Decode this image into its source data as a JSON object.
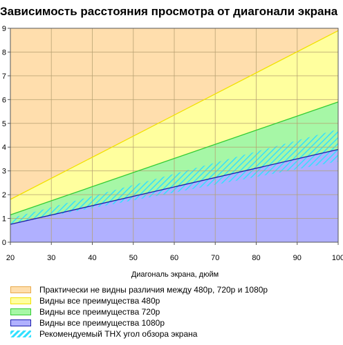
{
  "chart_data": {
    "type": "area",
    "title": "Зависимость расстояния просмотра от диагонали экрана",
    "xlabel": "Диагональ экрана, дюйм",
    "ylabel": "",
    "x": [
      20,
      100
    ],
    "xlim": [
      20,
      100
    ],
    "ylim": [
      0,
      9
    ],
    "x_ticks": [
      "20",
      "30",
      "40",
      "50",
      "60",
      "70",
      "80",
      "90",
      "100"
    ],
    "y_ticks": [
      "0",
      "1",
      "2",
      "3",
      "4",
      "5",
      "6",
      "7",
      "8",
      "9"
    ],
    "grid": true,
    "legend_position": "bottom",
    "series": [
      {
        "name": "Практически не видны различия между 480p, 720p и 1080p",
        "color": "#ffdead",
        "edge": "#e8a94a",
        "y": [
          9,
          9
        ],
        "fill": "solid"
      },
      {
        "name": "Видны все преимущества 480p",
        "color": "#ffff9e",
        "edge": "#f2e000",
        "y": [
          1.8,
          8.9
        ],
        "fill": "solid"
      },
      {
        "name": "Видны все преимущества 720p",
        "color": "#a6f7a6",
        "edge": "#33cc33",
        "y": [
          1.15,
          5.9
        ],
        "fill": "solid"
      },
      {
        "name": "Видны все преимущества 1080p",
        "color": "#b0b0ff",
        "edge": "#1a1aaa",
        "y": [
          0.75,
          3.9
        ],
        "fill": "solid"
      },
      {
        "name": "Рекомендуемый THX угол обзора экрана",
        "color": "#33e0ff",
        "edge": "#00ccee",
        "y_upper": [
          1.0,
          4.75
        ],
        "y_lower": [
          0.78,
          3.4
        ],
        "fill": "hatched"
      }
    ]
  }
}
